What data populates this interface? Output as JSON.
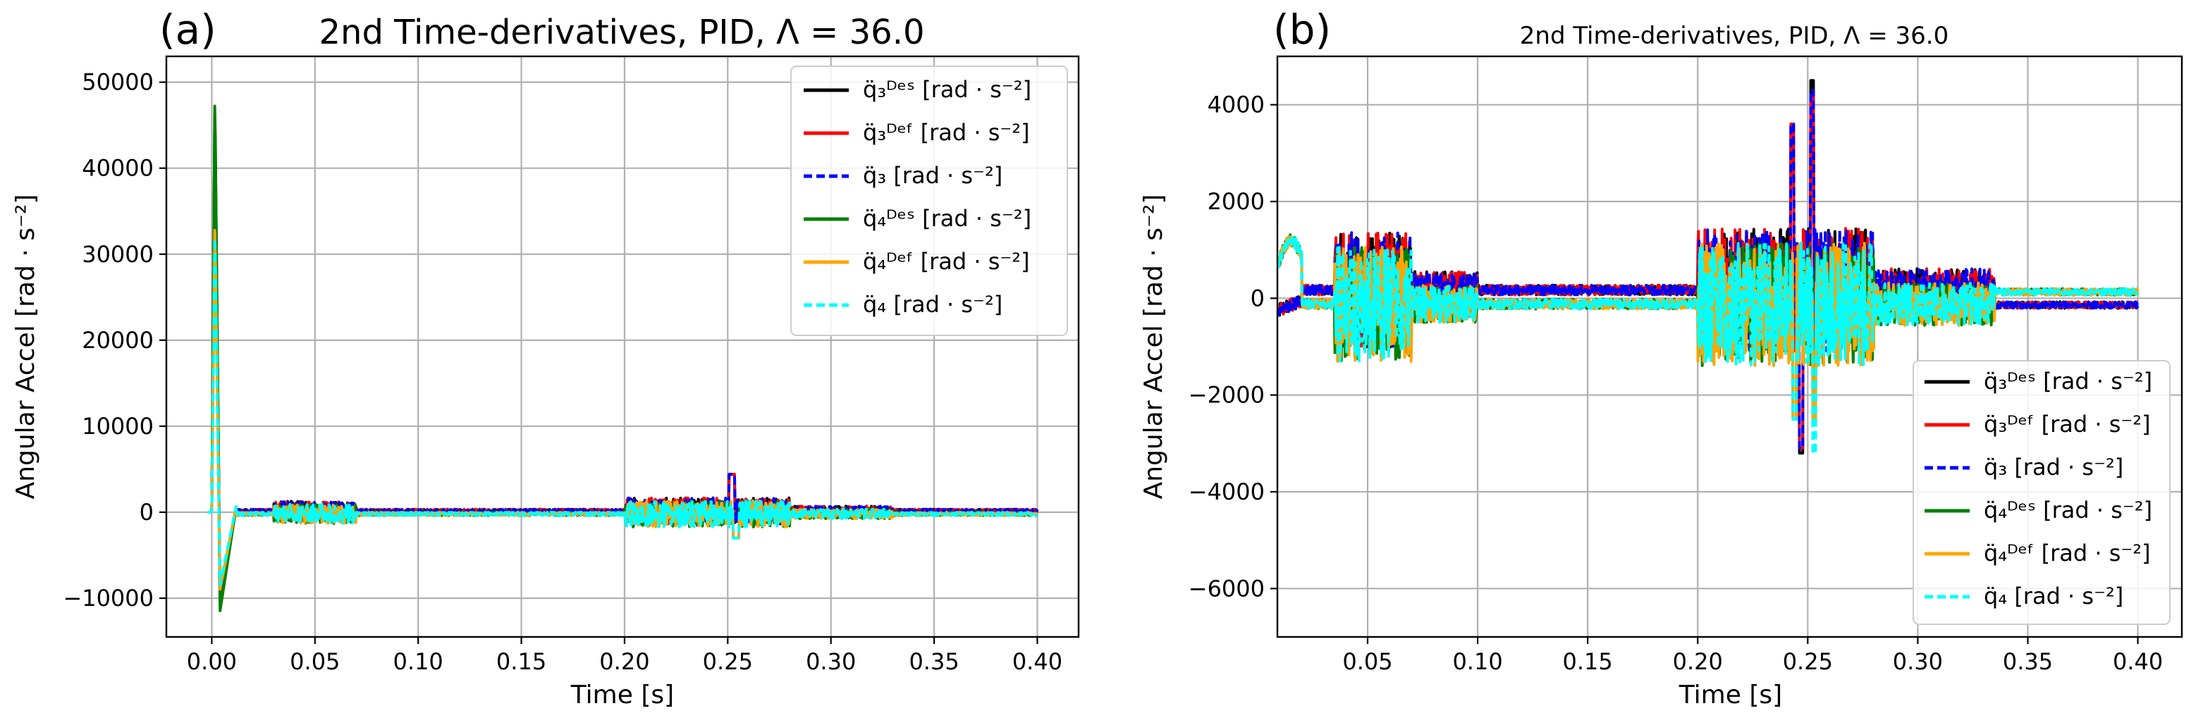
{
  "chart_data": [
    {
      "type": "line",
      "panel_label": "(a)",
      "title": "2nd Time-derivatives, PID, Λ = 36.0",
      "xlabel": "Time [s]",
      "ylabel": "Angular Accel [rad · s⁻²]",
      "xlim": [
        -0.022,
        0.42
      ],
      "ylim": [
        -14500,
        53000
      ],
      "xticks": [
        0.0,
        0.05,
        0.1,
        0.15,
        0.2,
        0.25,
        0.3,
        0.35,
        0.4
      ],
      "xtick_labels": [
        "0.00",
        "0.05",
        "0.10",
        "0.15",
        "0.20",
        "0.25",
        "0.30",
        "0.35",
        "0.40"
      ],
      "yticks": [
        -10000,
        0,
        10000,
        20000,
        30000,
        40000,
        50000
      ],
      "ytick_labels": [
        "−10000",
        "0",
        "10000",
        "20000",
        "30000",
        "40000",
        "50000"
      ],
      "grid": true,
      "legend_position": "top-right",
      "series": [
        {
          "name": "q̈₃ᴰᵉˢ [rad · s⁻²]",
          "color": "#000000",
          "dash": "solid",
          "peak": 48000,
          "trough": -11000,
          "envelope": "moderate"
        },
        {
          "name": "q̈₃ᴰᵉᶠ [rad · s⁻²]",
          "color": "#ff0000",
          "dash": "solid",
          "peak": 45000,
          "trough": -10500,
          "envelope": "moderate"
        },
        {
          "name": "q̈₃ [rad · s⁻²]",
          "color": "#0000ff",
          "dash": "dashed",
          "peak": 46000,
          "trough": -10000,
          "envelope": "moderate"
        },
        {
          "name": "q̈₄ᴰᵉˢ [rad · s⁻²]",
          "color": "#008000",
          "dash": "solid",
          "peak": 49000,
          "trough": -11500,
          "envelope": "moderate"
        },
        {
          "name": "q̈₄ᴰᵉᶠ [rad · s⁻²]",
          "color": "#ffa500",
          "dash": "solid",
          "peak": 34000,
          "trough": -9000,
          "envelope": "moderate"
        },
        {
          "name": "q̈₄ [rad · s⁻²]",
          "color": "#00ffff",
          "dash": "dashed",
          "peak": 33000,
          "trough": -8500,
          "envelope": "moderate"
        }
      ]
    },
    {
      "type": "line",
      "panel_label": "(b)",
      "title": "2nd Time-derivatives, PID, Λ = 36.0",
      "xlabel": "Time [s]",
      "ylabel": "Angular Accel [rad · s⁻²]",
      "xlim": [
        0.009,
        0.42
      ],
      "ylim": [
        -7000,
        5000
      ],
      "xticks": [
        0.05,
        0.1,
        0.15,
        0.2,
        0.25,
        0.3,
        0.35,
        0.4
      ],
      "xtick_labels": [
        "0.05",
        "0.10",
        "0.15",
        "0.20",
        "0.25",
        "0.30",
        "0.35",
        "0.40"
      ],
      "yticks": [
        -6000,
        -4000,
        -2000,
        0,
        2000,
        4000
      ],
      "ytick_labels": [
        "−6000",
        "−4000",
        "−2000",
        "0",
        "2000",
        "4000"
      ],
      "grid": true,
      "legend_position": "lower-right",
      "series": [
        {
          "name": "q̈₃ᴰᵉˢ [rad · s⁻²]",
          "color": "#000000",
          "dash": "solid",
          "peak": 4500,
          "trough": -3200,
          "envelope": "zoomed"
        },
        {
          "name": "q̈₃ᴰᵉᶠ [rad · s⁻²]",
          "color": "#ff0000",
          "dash": "solid",
          "peak": 4200,
          "trough": -3100,
          "envelope": "zoomed"
        },
        {
          "name": "q̈₃ [rad · s⁻²]",
          "color": "#0000ff",
          "dash": "dashed",
          "peak": 4300,
          "trough": -3100,
          "envelope": "zoomed"
        },
        {
          "name": "q̈₄ᴰᵉˢ [rad · s⁻²]",
          "color": "#008000",
          "dash": "solid",
          "peak": 1200,
          "trough": -2500,
          "envelope": "zoomed"
        },
        {
          "name": "q̈₄ᴰᵉᶠ [rad · s⁻²]",
          "color": "#ffa500",
          "dash": "solid",
          "peak": 1300,
          "trough": -2600,
          "envelope": "zoomed"
        },
        {
          "name": "q̈₄ [rad · s⁻²]",
          "color": "#00ffff",
          "dash": "dashed",
          "peak": 1200,
          "trough": -3200,
          "envelope": "zoomed"
        }
      ]
    }
  ]
}
